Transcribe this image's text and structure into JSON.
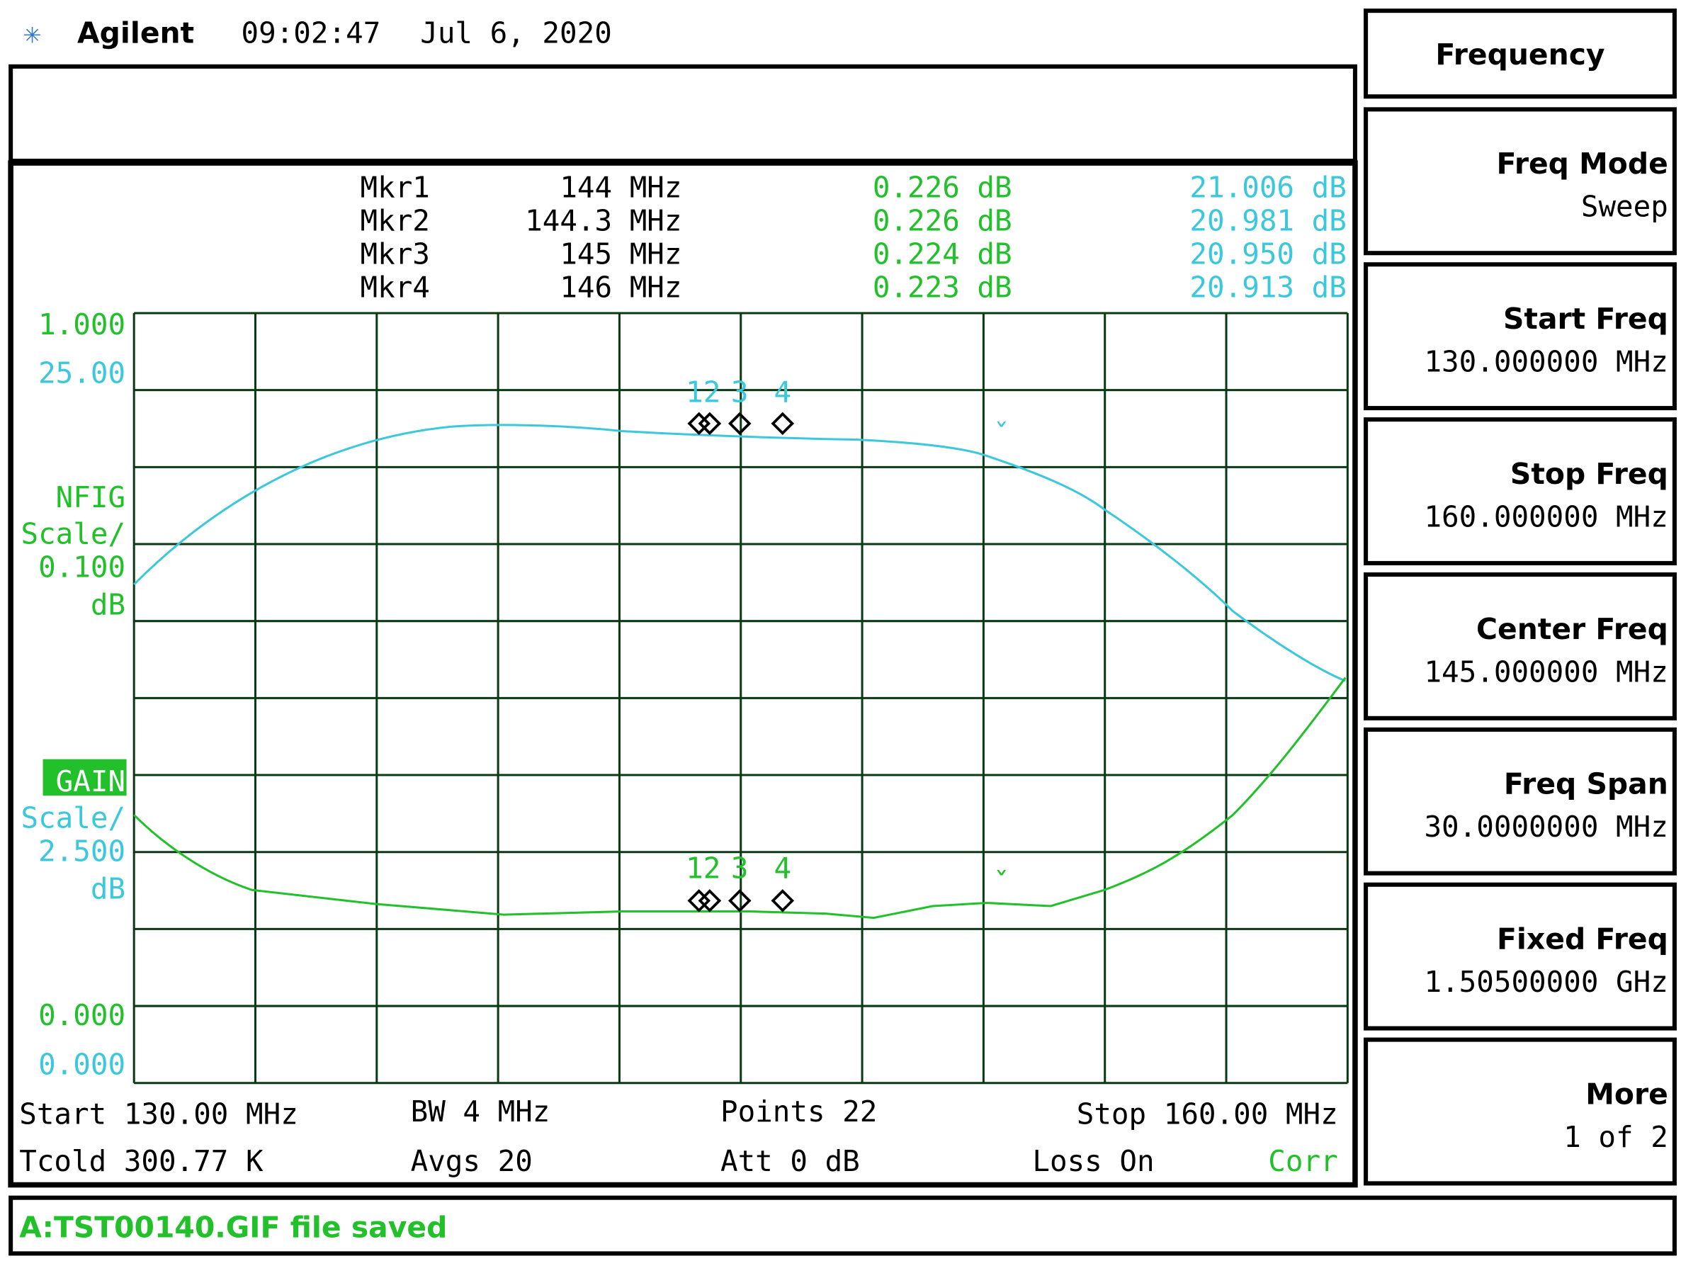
{
  "header": {
    "brand": "Agilent",
    "time": "09:02:47",
    "date": "Jul 6, 2020"
  },
  "markers": [
    {
      "name": "Mkr1",
      "freq": "144 MHz",
      "nfig": "0.226 dB",
      "gain": "21.006 dB"
    },
    {
      "name": "Mkr2",
      "freq": "144.3 MHz",
      "nfig": "0.226 dB",
      "gain": "20.981 dB"
    },
    {
      "name": "Mkr3",
      "freq": "145 MHz",
      "nfig": "0.224 dB",
      "gain": "20.950 dB"
    },
    {
      "name": "Mkr4",
      "freq": "146 MHz",
      "nfig": "0.223 dB",
      "gain": "20.913 dB"
    }
  ],
  "trace_marker_labels": [
    "12",
    "3",
    "4"
  ],
  "left_scale": {
    "nfig_top": "1.000",
    "gain_top": "25.00",
    "nfig_label": "NFIG",
    "nfig_scale": "Scale/",
    "nfig_scale_value": "0.100",
    "nfig_unit": "dB",
    "gain_label": "GAIN",
    "gain_scale": "Scale/",
    "gain_scale_value": "2.500",
    "gain_unit": "dB",
    "nfig_bottom": "0.000",
    "gain_bottom": "0.000"
  },
  "status": {
    "start": "Start 130.00 MHz",
    "bw": "BW 4 MHz",
    "points": "Points 22",
    "stop": "Stop 160.00 MHz",
    "tcold": "Tcold 300.77 K",
    "avgs": "Avgs 20",
    "att": "Att 0 dB",
    "loss": "Loss On",
    "corr": "Corr"
  },
  "message": "A:TST00140.GIF file saved",
  "menu": {
    "title": "Frequency",
    "items": [
      {
        "label": "Freq Mode",
        "value": "Sweep"
      },
      {
        "label": "Start Freq",
        "value": "130.000000 MHz"
      },
      {
        "label": "Stop Freq",
        "value": "160.000000 MHz"
      },
      {
        "label": "Center Freq",
        "value": "145.000000 MHz"
      },
      {
        "label": "Freq Span",
        "value": "30.0000000 MHz"
      },
      {
        "label": "Fixed Freq",
        "value": "1.50500000 GHz"
      },
      {
        "label": "More",
        "value": "1 of 2"
      }
    ]
  }
}
